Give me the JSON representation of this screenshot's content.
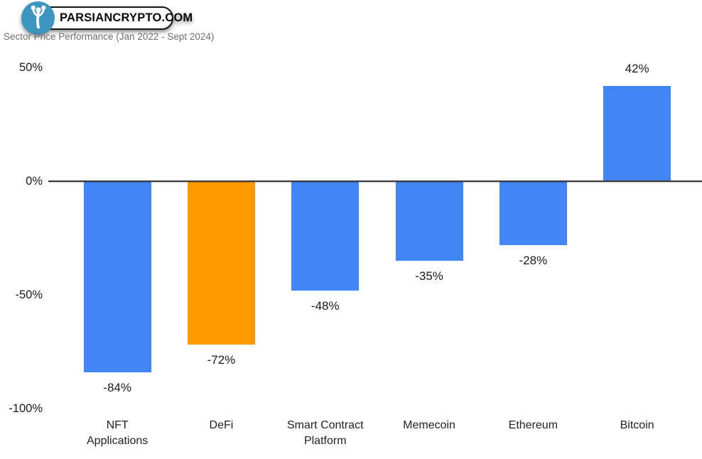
{
  "header": {
    "logo": {
      "text": "PARSIANCRYPTO.COM",
      "icon": "tree-icon",
      "circle_color": "#3d96c0"
    },
    "title": "Sector Price Performance (Jan 2022 - Sept 2024)"
  },
  "chart_data": {
    "type": "bar",
    "title": "Sector Price Performance (Jan 2022 - Sept 2024)",
    "categories": [
      "NFT Applications",
      "DeFi",
      "Smart Contract Platform",
      "Memecoin",
      "Ethereum",
      "Bitcoin"
    ],
    "values": [
      -84,
      -72,
      -48,
      -35,
      -28,
      42
    ],
    "value_labels": [
      "-84%",
      "-72%",
      "-48%",
      "-35%",
      "-28%",
      "42%"
    ],
    "bar_colors": [
      "#4285f4",
      "#ff9900",
      "#4285f4",
      "#4285f4",
      "#4285f4",
      "#4285f4"
    ],
    "y_ticks": [
      {
        "value": 50,
        "label": "50%"
      },
      {
        "value": 0,
        "label": "0%"
      },
      {
        "value": -50,
        "label": "-50%"
      },
      {
        "value": -100,
        "label": "-100%"
      }
    ],
    "ylim": [
      -100,
      50
    ],
    "xlabel": "",
    "ylabel": "",
    "grid": false,
    "legend": "none",
    "colors": {
      "default_bar": "#4285f4",
      "highlight_bar": "#ff9900",
      "axis": "#3b3b3b"
    }
  }
}
